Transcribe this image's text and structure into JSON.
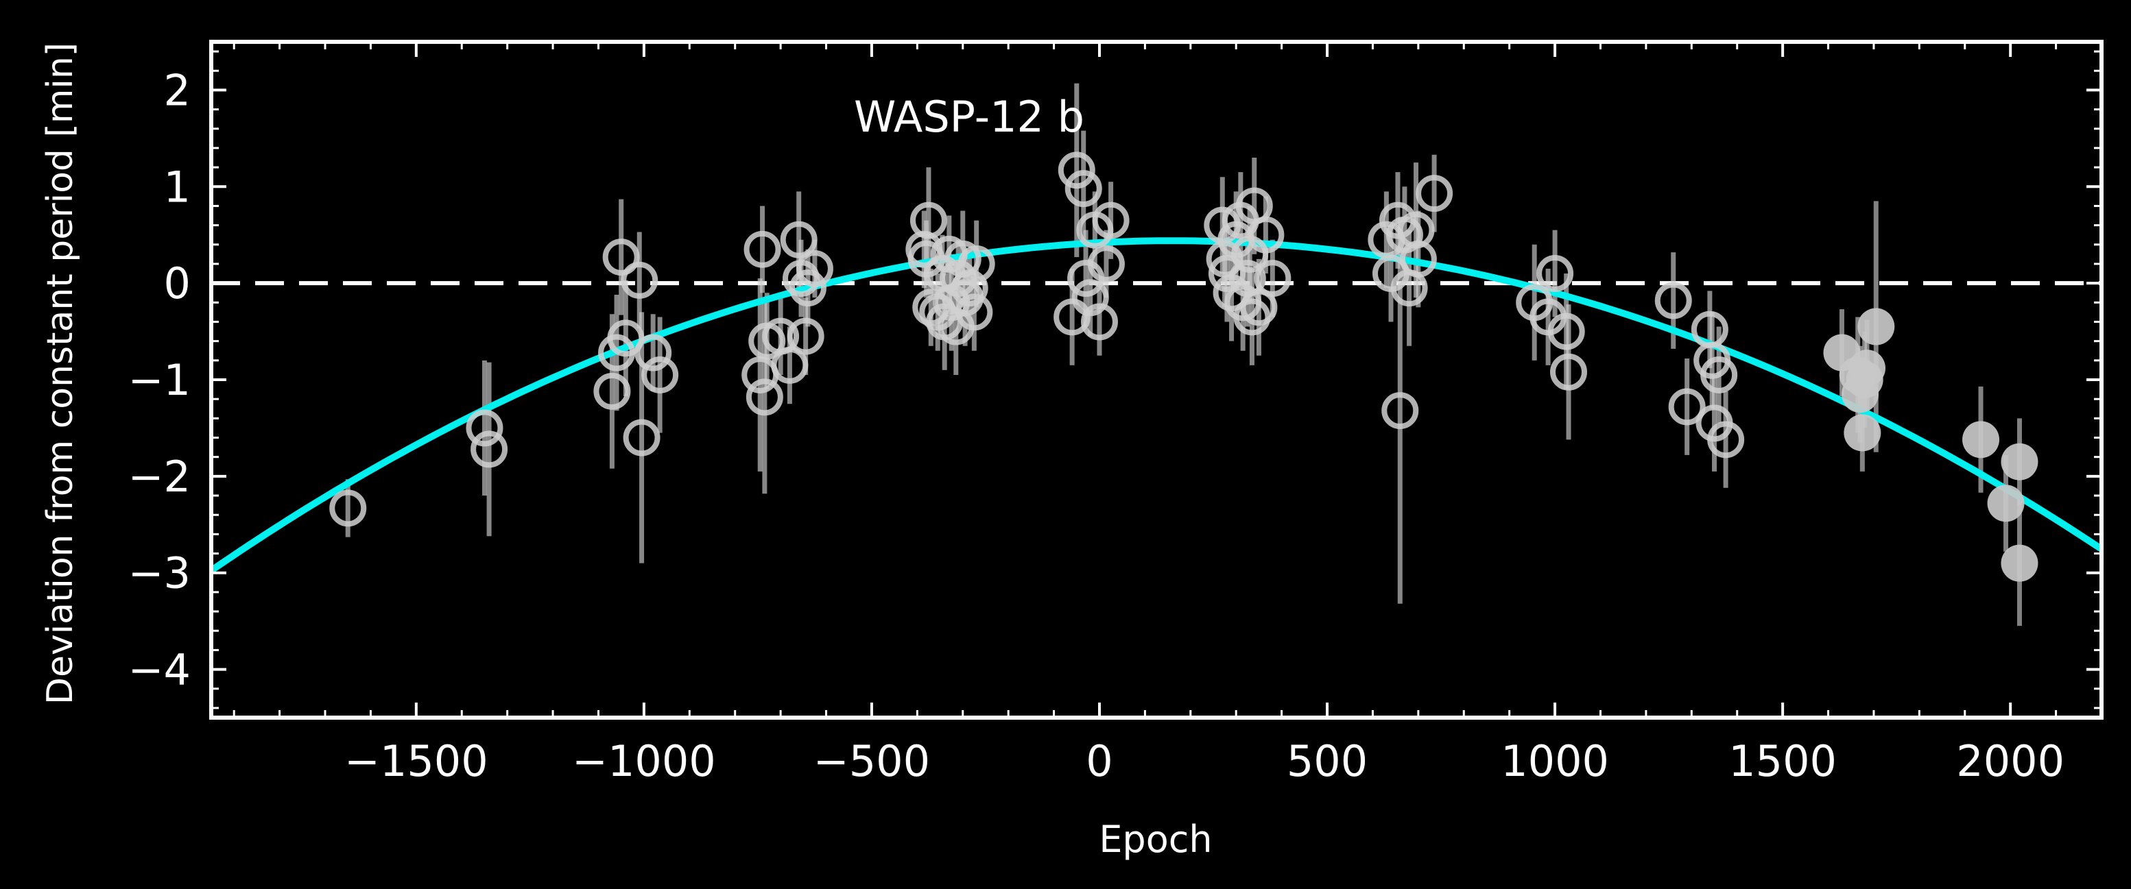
{
  "chart_data": {
    "type": "scatter",
    "title": "",
    "annotation": "WASP-12 b",
    "xlabel": "Epoch",
    "ylabel": "Deviation from constant period [min]",
    "xlim": [
      -1950,
      2200
    ],
    "ylim": [
      -4.5,
      2.5
    ],
    "xticks": [
      -1500,
      -1000,
      -500,
      0,
      500,
      1000,
      1500,
      2000
    ],
    "xtick_labels": [
      "−1500",
      "−1000",
      "−500",
      "0",
      "500",
      "1000",
      "1500",
      "2000"
    ],
    "yticks": [
      -4,
      -3,
      -2,
      -1,
      0,
      1,
      2
    ],
    "ytick_labels": [
      "−4",
      "−3",
      "−2",
      "−1",
      "0",
      "1",
      "2"
    ],
    "grid": false,
    "reference_line": {
      "y": 0,
      "style": "dashed",
      "color": "#ffffff"
    },
    "model_curve": {
      "type": "quadratic",
      "description": "decaying-period fit",
      "color": "#00f0f0",
      "points": [
        [
          -1950,
          -2.97
        ],
        [
          -1700,
          -2.23
        ],
        [
          -1400,
          -1.45
        ],
        [
          -1100,
          -0.79
        ],
        [
          -800,
          -0.26
        ],
        [
          -500,
          0.13
        ],
        [
          -200,
          0.37
        ],
        [
          0,
          0.44
        ],
        [
          200,
          0.46
        ],
        [
          500,
          0.37
        ],
        [
          800,
          0.12
        ],
        [
          1100,
          -0.26
        ],
        [
          1400,
          -0.78
        ],
        [
          1700,
          -1.45
        ],
        [
          2000,
          -2.25
        ],
        [
          2200,
          -2.6
        ]
      ]
    },
    "series": [
      {
        "marker": "open-circle",
        "color": "#d0d0d0",
        "points": [
          {
            "x": -1650,
            "y": -2.33,
            "err": 0.3
          },
          {
            "x": -1350,
            "y": -1.5,
            "err": 0.7
          },
          {
            "x": -1340,
            "y": -1.72,
            "err": 0.9
          },
          {
            "x": -1050,
            "y": 0.27,
            "err": 0.6
          },
          {
            "x": -1060,
            "y": -0.72,
            "err": 0.6
          },
          {
            "x": -1040,
            "y": -0.57,
            "err": 0.6
          },
          {
            "x": -1070,
            "y": -1.12,
            "err": 0.8
          },
          {
            "x": -1010,
            "y": 0.03,
            "err": 0.5
          },
          {
            "x": -1005,
            "y": -1.6,
            "err": 1.3
          },
          {
            "x": -980,
            "y": -0.72,
            "err": 0.4
          },
          {
            "x": -965,
            "y": -0.95,
            "err": 0.6
          },
          {
            "x": -740,
            "y": 0.35,
            "err": 0.45
          },
          {
            "x": -745,
            "y": -0.95,
            "err": 1.0
          },
          {
            "x": -735,
            "y": -1.18,
            "err": 1.0
          },
          {
            "x": -730,
            "y": -0.6,
            "err": 0.5
          },
          {
            "x": -700,
            "y": -0.55,
            "err": 0.4
          },
          {
            "x": -680,
            "y": -0.85,
            "err": 0.4
          },
          {
            "x": -660,
            "y": 0.45,
            "err": 0.5
          },
          {
            "x": -655,
            "y": 0.05,
            "err": 0.4
          },
          {
            "x": -645,
            "y": -0.55,
            "err": 0.4
          },
          {
            "x": -640,
            "y": -0.05,
            "err": 0.4
          },
          {
            "x": -625,
            "y": 0.15,
            "err": 0.3
          },
          {
            "x": -385,
            "y": 0.35,
            "err": 0.4
          },
          {
            "x": -380,
            "y": 0.25,
            "err": 0.4
          },
          {
            "x": -375,
            "y": 0.65,
            "err": 0.55
          },
          {
            "x": -370,
            "y": -0.25,
            "err": 0.4
          },
          {
            "x": -355,
            "y": -0.3,
            "err": 0.4
          },
          {
            "x": -345,
            "y": 0.1,
            "err": 0.4
          },
          {
            "x": -340,
            "y": -0.4,
            "err": 0.5
          },
          {
            "x": -330,
            "y": 0.3,
            "err": 0.4
          },
          {
            "x": -325,
            "y": -0.2,
            "err": 0.5
          },
          {
            "x": -315,
            "y": -0.45,
            "err": 0.5
          },
          {
            "x": -310,
            "y": 0.05,
            "err": 0.4
          },
          {
            "x": -300,
            "y": 0.25,
            "err": 0.5
          },
          {
            "x": -295,
            "y": -0.15,
            "err": 0.5
          },
          {
            "x": -285,
            "y": -0.05,
            "err": 0.4
          },
          {
            "x": -275,
            "y": -0.3,
            "err": 0.4
          },
          {
            "x": -270,
            "y": 0.2,
            "err": 0.45
          },
          {
            "x": -50,
            "y": 1.17,
            "err": 0.9
          },
          {
            "x": -60,
            "y": -0.35,
            "err": 0.5
          },
          {
            "x": -35,
            "y": 0.98,
            "err": 0.6
          },
          {
            "x": -30,
            "y": 0.05,
            "err": 0.5
          },
          {
            "x": -20,
            "y": -0.15,
            "err": 0.4
          },
          {
            "x": -10,
            "y": 0.55,
            "err": 0.4
          },
          {
            "x": 0,
            "y": -0.4,
            "err": 0.35
          },
          {
            "x": 15,
            "y": 0.2,
            "err": 0.35
          },
          {
            "x": 25,
            "y": 0.65,
            "err": 0.4
          },
          {
            "x": 270,
            "y": 0.6,
            "err": 0.5
          },
          {
            "x": 275,
            "y": 0.25,
            "err": 0.5
          },
          {
            "x": 280,
            "y": 0.1,
            "err": 0.5
          },
          {
            "x": 290,
            "y": -0.1,
            "err": 0.5
          },
          {
            "x": 300,
            "y": 0.45,
            "err": 0.5
          },
          {
            "x": 310,
            "y": 0.65,
            "err": 0.5
          },
          {
            "x": 315,
            "y": -0.2,
            "err": 0.5
          },
          {
            "x": 325,
            "y": 0.05,
            "err": 0.5
          },
          {
            "x": 330,
            "y": 0.3,
            "err": 0.5
          },
          {
            "x": 335,
            "y": -0.35,
            "err": 0.5
          },
          {
            "x": 340,
            "y": 0.8,
            "err": 0.5
          },
          {
            "x": 350,
            "y": -0.25,
            "err": 0.5
          },
          {
            "x": 365,
            "y": 0.5,
            "err": 0.4
          },
          {
            "x": 380,
            "y": 0.05,
            "err": 0.4
          },
          {
            "x": 630,
            "y": 0.45,
            "err": 0.5
          },
          {
            "x": 640,
            "y": 0.1,
            "err": 0.5
          },
          {
            "x": 655,
            "y": 0.65,
            "err": 0.5
          },
          {
            "x": 660,
            "y": -1.32,
            "err": 2.0
          },
          {
            "x": 670,
            "y": 0.5,
            "err": 0.5
          },
          {
            "x": 680,
            "y": -0.05,
            "err": 0.6
          },
          {
            "x": 695,
            "y": 0.55,
            "err": 0.7
          },
          {
            "x": 700,
            "y": 0.25,
            "err": 0.5
          },
          {
            "x": 735,
            "y": 0.93,
            "err": 0.4
          },
          {
            "x": 955,
            "y": -0.2,
            "err": 0.6
          },
          {
            "x": 985,
            "y": -0.35,
            "err": 0.5
          },
          {
            "x": 1000,
            "y": 0.1,
            "err": 0.45
          },
          {
            "x": 1025,
            "y": -0.5,
            "err": 0.6
          },
          {
            "x": 1030,
            "y": -0.92,
            "err": 0.7
          },
          {
            "x": 1260,
            "y": -0.18,
            "err": 0.5
          },
          {
            "x": 1290,
            "y": -1.28,
            "err": 0.5
          },
          {
            "x": 1340,
            "y": -0.48,
            "err": 0.4
          },
          {
            "x": 1345,
            "y": -0.8,
            "err": 0.5
          },
          {
            "x": 1350,
            "y": -1.45,
            "err": 0.5
          },
          {
            "x": 1360,
            "y": -0.95,
            "err": 0.5
          },
          {
            "x": 1375,
            "y": -1.62,
            "err": 0.5
          }
        ]
      },
      {
        "marker": "filled-circle",
        "color": "#c8c8c8",
        "points": [
          {
            "x": 1630,
            "y": -0.72,
            "err": 0.45
          },
          {
            "x": 1665,
            "y": -0.95,
            "err": 0.6
          },
          {
            "x": 1670,
            "y": -1.15,
            "err": 0.5
          },
          {
            "x": 1675,
            "y": -1.55,
            "err": 0.4
          },
          {
            "x": 1680,
            "y": -1.0,
            "err": 0.5
          },
          {
            "x": 1685,
            "y": -0.88,
            "err": 0.5
          },
          {
            "x": 1705,
            "y": -0.45,
            "err": 1.3
          },
          {
            "x": 1935,
            "y": -1.62,
            "err": 0.55
          },
          {
            "x": 1990,
            "y": -2.28,
            "err": 0.5
          },
          {
            "x": 2020,
            "y": -1.85,
            "err": 0.45
          },
          {
            "x": 2020,
            "y": -2.9,
            "err": 0.65
          }
        ]
      }
    ]
  }
}
